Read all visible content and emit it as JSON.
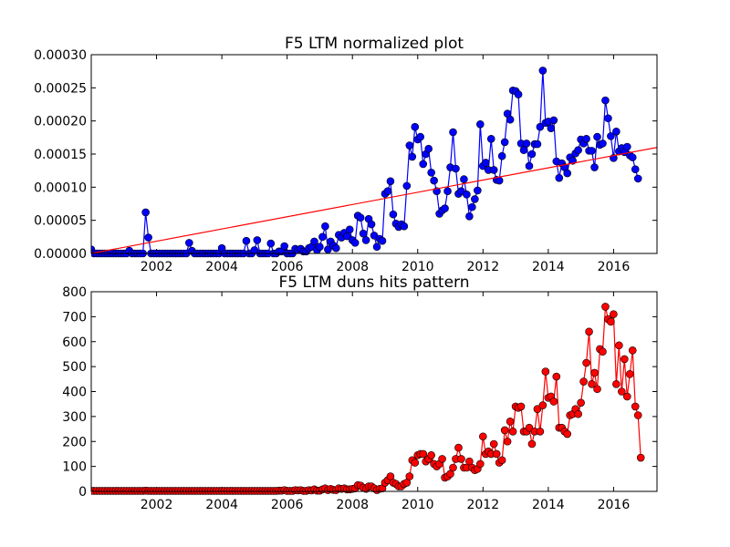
{
  "chart_data": [
    {
      "type": "line",
      "title": "F5 LTM normalized plot",
      "xlabel": "",
      "ylabel": "",
      "xlim": [
        2000.0,
        2017.33
      ],
      "ylim": [
        0,
        0.0003
      ],
      "x_ticks": [
        "2002",
        "2004",
        "2006",
        "2008",
        "2010",
        "2012",
        "2014",
        "2016"
      ],
      "y_ticks": [
        "0.00000",
        "0.00005",
        "0.00010",
        "0.00015",
        "0.00020",
        "0.00025",
        "0.00030"
      ],
      "colors": {
        "series": "#0000ff",
        "trend": "#ff0000"
      },
      "grid": false,
      "series": [
        {
          "x_start": 2000.0,
          "x_step": 0.08333,
          "values": [
            6e-06,
            0,
            0,
            0,
            0,
            0,
            0,
            0,
            0,
            0,
            0,
            0,
            0,
            0,
            4e-06,
            0,
            0,
            0,
            0,
            0,
            6.2e-05,
            2.4e-05,
            0,
            0,
            0,
            0,
            0,
            0,
            0,
            0,
            0,
            0,
            0,
            0,
            0,
            0,
            1.6e-05,
            4e-06,
            0,
            0,
            0,
            0,
            0,
            0,
            0,
            0,
            0,
            0,
            8e-06,
            0,
            0,
            0,
            0,
            0,
            0,
            0,
            0,
            1.9e-05,
            0,
            0,
            5e-06,
            2e-05,
            0,
            0,
            0,
            0,
            1.5e-05,
            0,
            0,
            3e-06,
            3e-06,
            1.1e-05,
            0,
            0,
            0,
            7e-06,
            5e-06,
            7e-06,
            3e-06,
            3e-06,
            8e-06,
            1e-05,
            1.8e-05,
            5e-06,
            1e-05,
            2.5e-05,
            4.1e-05,
            6e-06,
            1.8e-05,
            1.2e-05,
            8e-06,
            2.8e-05,
            2.4e-05,
            3.1e-05,
            2.6e-05,
            3.6e-05,
            2e-05,
            1.6e-05,
            5.7e-05,
            5.4e-05,
            3e-05,
            2e-05,
            5.2e-05,
            4.4e-05,
            2.7e-05,
            1e-05,
            2.2e-05,
            1.9e-05,
            9e-05,
            9.4e-05,
            0.000109,
            5.9e-05,
            4.5e-05,
            4e-05,
            4.4e-05,
            4.1e-05,
            0.000102,
            0.000163,
            0.000146,
            0.000191,
            0.000172,
            0.000176,
            0.000135,
            0.00015,
            0.000158,
            0.000122,
            0.00011,
            9.4e-05,
            6e-05,
            6.5e-05,
            6.8e-05,
            9.4e-05,
            0.00013,
            0.000183,
            0.000128,
            9e-05,
            9.4e-05,
            0.000112,
            8.9e-05,
            5.6e-05,
            7e-05,
            8.2e-05,
            9.5e-05,
            0.000195,
            0.000132,
            0.000137,
            0.000126,
            0.000173,
            0.000126,
            0.000111,
            0.00011,
            0.000147,
            0.000168,
            0.000211,
            0.000202,
            0.000246,
            0.000245,
            0.00024,
            0.000166,
            0.000156,
            0.000166,
            0.000132,
            0.00015,
            0.000165,
            0.000165,
            0.000191,
            0.000276,
            0.000197,
            0.000199,
            0.000189,
            0.000201,
            0.000139,
            0.000114,
            0.000136,
            0.00013,
            0.000121,
            0.000145,
            0.00014,
            0.000151,
            0.000156,
            0.000172,
            0.000166,
            0.000173,
            0.000155,
            0.000155,
            0.00013,
            0.000176,
            0.000164,
            0.000166,
            0.000231,
            0.000204,
            0.000177,
            0.000144,
            0.000184,
            0.000154,
            0.000159,
            0.000153,
            0.000161,
            0.000148,
            0.000145,
            0.000127,
            0.000113
          ]
        }
      ],
      "trend_line": {
        "x": [
          2000.0,
          2017.33
        ],
        "y": [
          0.0,
          0.00016
        ]
      }
    },
    {
      "type": "line",
      "title": "F5 LTM duns hits pattern",
      "xlabel": "",
      "ylabel": "",
      "xlim": [
        2000.0,
        2017.33
      ],
      "ylim": [
        0,
        800
      ],
      "x_ticks": [
        "2002",
        "2004",
        "2006",
        "2008",
        "2010",
        "2012",
        "2014",
        "2016"
      ],
      "y_ticks": [
        "0",
        "100",
        "200",
        "300",
        "400",
        "500",
        "600",
        "700",
        "800"
      ],
      "colors": {
        "series": "#ff0000"
      },
      "grid": false,
      "series": [
        {
          "x_start": 2000.0,
          "x_step": 0.08333,
          "values": [
            2,
            2,
            2,
            2,
            2,
            2,
            2,
            2,
            2,
            2,
            2,
            2,
            2,
            2,
            2,
            2,
            2,
            2,
            2,
            2,
            3,
            2,
            2,
            2,
            2,
            2,
            2,
            2,
            2,
            2,
            2,
            2,
            2,
            2,
            2,
            2,
            2,
            2,
            2,
            2,
            2,
            2,
            2,
            2,
            2,
            2,
            2,
            2,
            2,
            2,
            2,
            2,
            2,
            2,
            2,
            2,
            2,
            2,
            2,
            2,
            2,
            2,
            2,
            2,
            2,
            2,
            2,
            2,
            2,
            3,
            3,
            5,
            2,
            2,
            2,
            5,
            4,
            5,
            2,
            2,
            5,
            4,
            8,
            3,
            3,
            8,
            12,
            5,
            10,
            6,
            5,
            12,
            10,
            12,
            8,
            8,
            10,
            12,
            25,
            23,
            15,
            10,
            20,
            20,
            12,
            5,
            10,
            12,
            35,
            45,
            60,
            35,
            30,
            20,
            20,
            30,
            35,
            60,
            125,
            115,
            145,
            150,
            150,
            120,
            130,
            145,
            110,
            100,
            110,
            130,
            55,
            60,
            70,
            95,
            130,
            175,
            130,
            95,
            95,
            120,
            95,
            85,
            90,
            110,
            220,
            150,
            160,
            150,
            190,
            150,
            115,
            125,
            245,
            200,
            280,
            240,
            340,
            335,
            340,
            240,
            240,
            255,
            190,
            240,
            330,
            240,
            345,
            480,
            375,
            380,
            360,
            460,
            255,
            255,
            240,
            230,
            305,
            310,
            330,
            310,
            355,
            440,
            515,
            640,
            430,
            475,
            410,
            570,
            560,
            740,
            690,
            680,
            710,
            430,
            585,
            400,
            530,
            380,
            470,
            565,
            340,
            305,
            135
          ]
        }
      ]
    }
  ]
}
